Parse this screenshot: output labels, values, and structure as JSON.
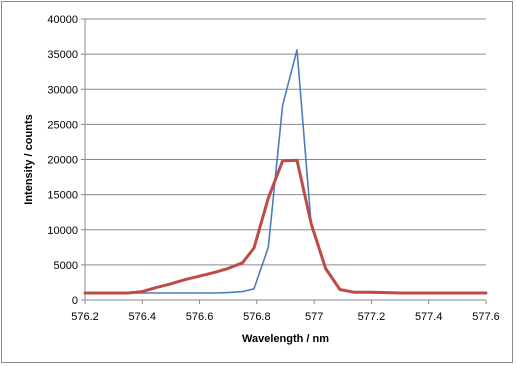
{
  "chart_data": {
    "type": "line",
    "title": "",
    "xlabel": "Wavelength / nm",
    "ylabel": "Intensity / counts",
    "xlim": [
      576.2,
      577.6
    ],
    "ylim": [
      0,
      40000
    ],
    "x_ticks": [
      "576.2",
      "576.4",
      "576.6",
      "576.8",
      "577",
      "577.2",
      "577.4",
      "577.6"
    ],
    "y_ticks": [
      "0",
      "5000",
      "10000",
      "15000",
      "20000",
      "25000",
      "30000",
      "35000",
      "40000"
    ],
    "grid": "horizontal",
    "legend": "none",
    "series": [
      {
        "color": "#4a7ebb",
        "points": [
          [
            576.2,
            1000
          ],
          [
            576.25,
            1000
          ],
          [
            576.3,
            1000
          ],
          [
            576.35,
            1000
          ],
          [
            576.4,
            1000
          ],
          [
            576.45,
            1000
          ],
          [
            576.5,
            1000
          ],
          [
            576.55,
            1000
          ],
          [
            576.6,
            1000
          ],
          [
            576.65,
            1000
          ],
          [
            576.7,
            1050
          ],
          [
            576.75,
            1200
          ],
          [
            576.79,
            1600
          ],
          [
            576.84,
            7500
          ],
          [
            576.89,
            27700
          ],
          [
            576.94,
            35600
          ],
          [
            576.99,
            10500
          ],
          [
            577.04,
            4300
          ],
          [
            577.09,
            1400
          ],
          [
            577.14,
            1100
          ],
          [
            577.2,
            1000
          ],
          [
            577.3,
            1000
          ],
          [
            577.4,
            1000
          ],
          [
            577.5,
            1000
          ],
          [
            577.6,
            1000
          ]
        ]
      },
      {
        "color": "#be4b48",
        "points": [
          [
            576.2,
            1000
          ],
          [
            576.25,
            1000
          ],
          [
            576.3,
            1000
          ],
          [
            576.35,
            1000
          ],
          [
            576.4,
            1200
          ],
          [
            576.45,
            1800
          ],
          [
            576.5,
            2300
          ],
          [
            576.55,
            2900
          ],
          [
            576.6,
            3400
          ],
          [
            576.65,
            3900
          ],
          [
            576.7,
            4500
          ],
          [
            576.75,
            5300
          ],
          [
            576.79,
            7400
          ],
          [
            576.84,
            14500
          ],
          [
            576.89,
            19800
          ],
          [
            576.94,
            19900
          ],
          [
            576.99,
            10800
          ],
          [
            577.04,
            4500
          ],
          [
            577.09,
            1500
          ],
          [
            577.14,
            1100
          ],
          [
            577.2,
            1100
          ],
          [
            577.3,
            1000
          ],
          [
            577.4,
            1000
          ],
          [
            577.5,
            1000
          ],
          [
            577.6,
            1000
          ]
        ]
      }
    ]
  }
}
